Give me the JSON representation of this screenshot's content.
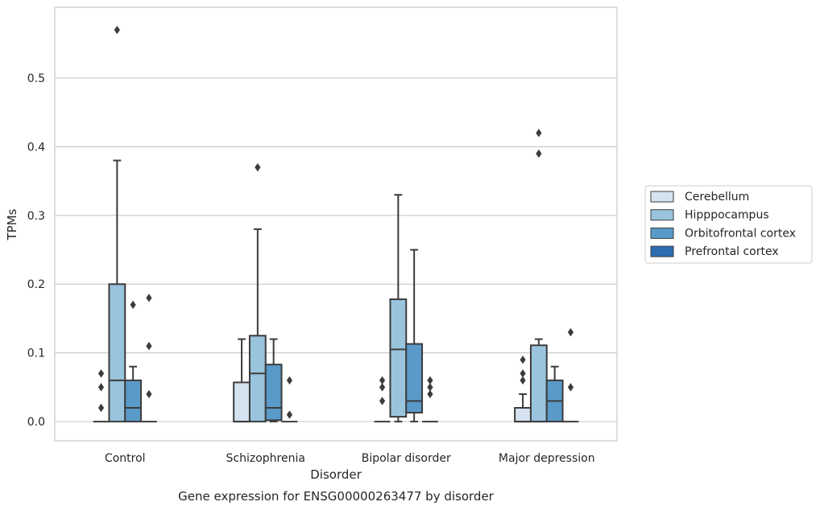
{
  "chart_data": {
    "type": "box",
    "caption": "Gene expression for ENSG00000263477 by disorder",
    "xlabel": "Disorder",
    "ylabel": "TPMs",
    "ylim": [
      -0.028,
      0.603
    ],
    "yticks": [
      0.0,
      0.1,
      0.2,
      0.3,
      0.4,
      0.5
    ],
    "ytick_labels": [
      "0.0",
      "0.1",
      "0.2",
      "0.3",
      "0.4",
      "0.5"
    ],
    "grid": "horizontal",
    "legend_position": "right",
    "categories": [
      "Control",
      "Schizophrenia",
      "Bipolar disorder",
      "Major depression"
    ],
    "series": [
      {
        "name": "Cerebellum",
        "color": "#d5e2f0",
        "boxes": [
          {
            "q1": 0.0,
            "median": 0.0,
            "q3": 0.0,
            "whisker_low": 0.0,
            "whisker_high": 0.0,
            "outliers": [
              0.02,
              0.05,
              0.07
            ]
          },
          {
            "q1": 0.0,
            "median": 0.0,
            "q3": 0.057,
            "whisker_low": 0.0,
            "whisker_high": 0.12,
            "outliers": []
          },
          {
            "q1": 0.0,
            "median": 0.0,
            "q3": 0.0,
            "whisker_low": 0.0,
            "whisker_high": 0.0,
            "outliers": [
              0.03,
              0.05,
              0.06
            ]
          },
          {
            "q1": 0.0,
            "median": 0.0,
            "q3": 0.02,
            "whisker_low": 0.0,
            "whisker_high": 0.04,
            "outliers": [
              0.06,
              0.07,
              0.09
            ]
          }
        ]
      },
      {
        "name": "Hipppocampus",
        "color": "#9ac4dd",
        "boxes": [
          {
            "q1": 0.0,
            "median": 0.06,
            "q3": 0.2,
            "whisker_low": 0.0,
            "whisker_high": 0.38,
            "outliers": [
              0.57
            ]
          },
          {
            "q1": 0.0,
            "median": 0.07,
            "q3": 0.125,
            "whisker_low": 0.0,
            "whisker_high": 0.28,
            "outliers": [
              0.37
            ]
          },
          {
            "q1": 0.007,
            "median": 0.105,
            "q3": 0.178,
            "whisker_low": 0.0,
            "whisker_high": 0.33,
            "outliers": []
          },
          {
            "q1": 0.0,
            "median": 0.0,
            "q3": 0.111,
            "whisker_low": 0.0,
            "whisker_high": 0.12,
            "outliers": [
              0.39,
              0.42
            ]
          }
        ]
      },
      {
        "name": "Orbitofrontal cortex",
        "color": "#5a9ac8",
        "boxes": [
          {
            "q1": 0.0,
            "median": 0.02,
            "q3": 0.06,
            "whisker_low": 0.0,
            "whisker_high": 0.08,
            "outliers": [
              0.17
            ]
          },
          {
            "q1": 0.002,
            "median": 0.02,
            "q3": 0.083,
            "whisker_low": 0.0,
            "whisker_high": 0.12,
            "outliers": []
          },
          {
            "q1": 0.013,
            "median": 0.03,
            "q3": 0.113,
            "whisker_low": 0.0,
            "whisker_high": 0.25,
            "outliers": []
          },
          {
            "q1": 0.0,
            "median": 0.03,
            "q3": 0.06,
            "whisker_low": 0.0,
            "whisker_high": 0.08,
            "outliers": []
          }
        ]
      },
      {
        "name": "Prefrontal cortex",
        "color": "#2a6db0",
        "boxes": [
          {
            "q1": 0.0,
            "median": 0.0,
            "q3": 0.0,
            "whisker_low": 0.0,
            "whisker_high": 0.0,
            "outliers": [
              0.04,
              0.11,
              0.18
            ]
          },
          {
            "q1": 0.0,
            "median": 0.0,
            "q3": 0.0,
            "whisker_low": 0.0,
            "whisker_high": 0.0,
            "outliers": [
              0.01,
              0.06
            ]
          },
          {
            "q1": 0.0,
            "median": 0.0,
            "q3": 0.0,
            "whisker_low": 0.0,
            "whisker_high": 0.0,
            "outliers": [
              0.04,
              0.05,
              0.06
            ]
          },
          {
            "q1": 0.0,
            "median": 0.0,
            "q3": 0.0,
            "whisker_low": 0.0,
            "whisker_high": 0.0,
            "outliers": [
              0.05,
              0.13
            ]
          }
        ]
      }
    ]
  }
}
